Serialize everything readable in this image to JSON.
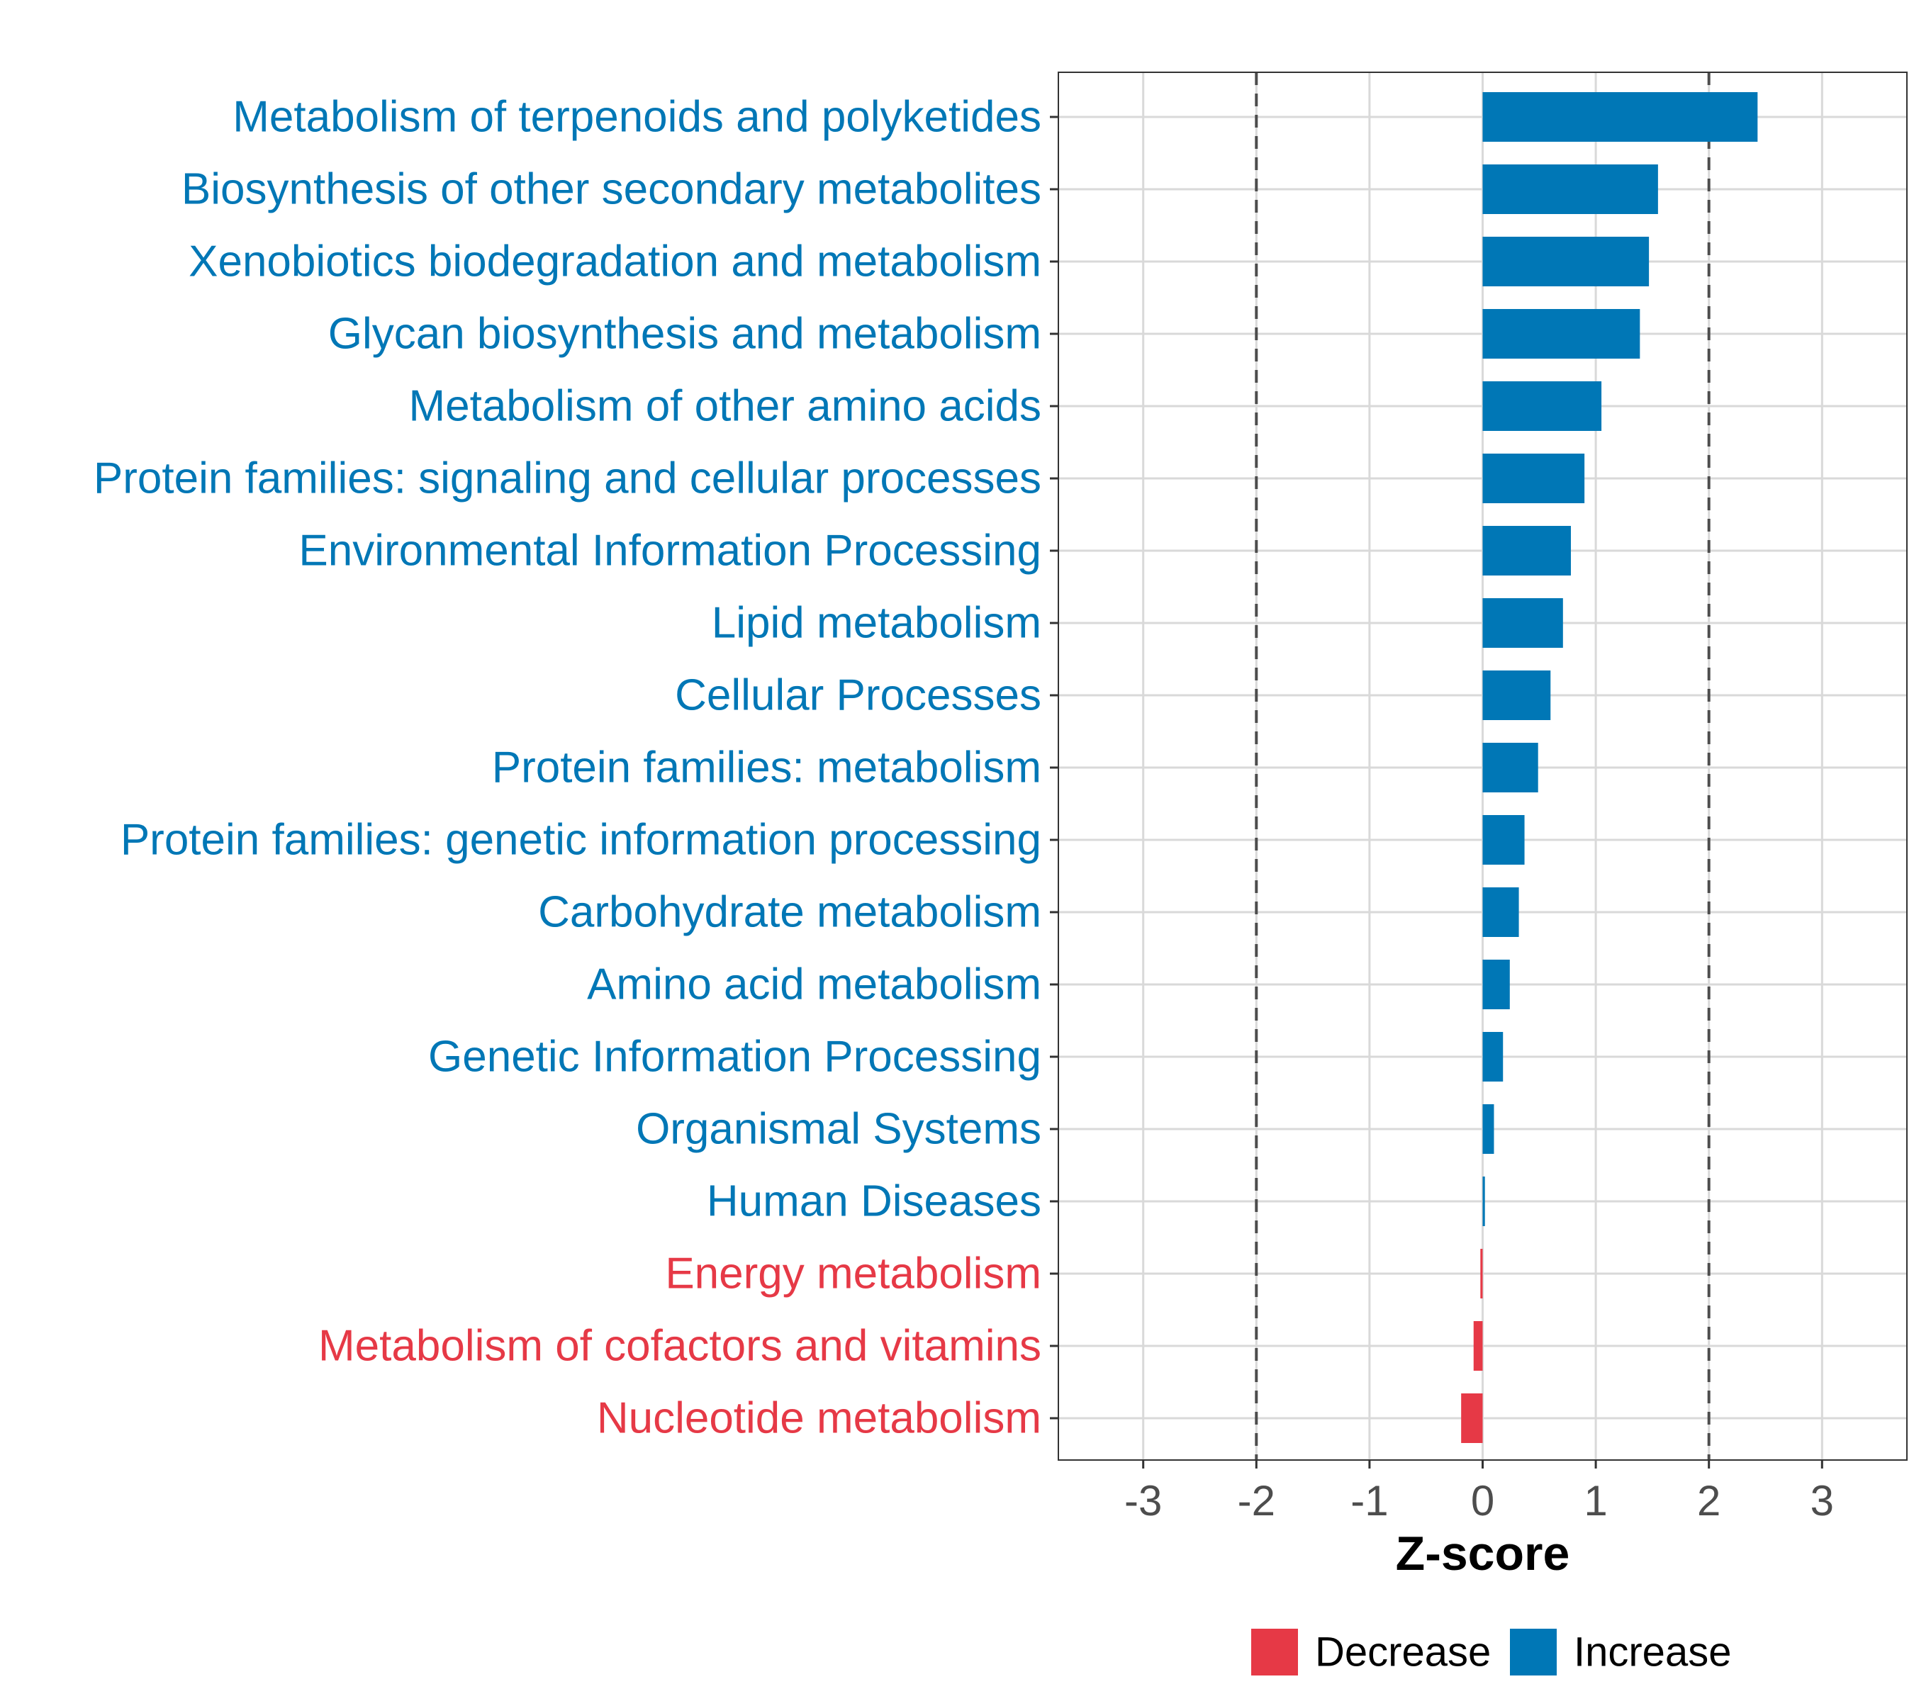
{
  "chart_data": {
    "type": "bar",
    "orientation": "horizontal",
    "title": "",
    "xlabel": "Z-score",
    "ylabel": "",
    "xlim": [
      -3.75,
      3.75
    ],
    "xticks": [
      -3,
      -2,
      -1,
      0,
      1,
      2,
      3
    ],
    "xtick_labels": [
      "-3",
      "-2",
      "-1",
      "0",
      "1",
      "2",
      "3"
    ],
    "reference_lines": [
      -2,
      2
    ],
    "grid": true,
    "colors": {
      "Decrease": "#e63946",
      "Increase": "#0077b6"
    },
    "categories": [
      "Metabolism of terpenoids and polyketides",
      "Biosynthesis of other secondary metabolites",
      "Xenobiotics biodegradation and metabolism",
      "Glycan biosynthesis and metabolism",
      "Metabolism of other amino acids",
      "Protein families: signaling and cellular processes",
      "Environmental Information Processing",
      "Lipid metabolism",
      "Cellular Processes",
      "Protein families: metabolism",
      "Protein families: genetic information processing",
      "Carbohydrate metabolism",
      "Amino acid metabolism",
      "Genetic Information Processing",
      "Organismal Systems",
      "Human Diseases",
      "Energy metabolism",
      "Metabolism of cofactors and vitamins",
      "Nucleotide metabolism"
    ],
    "values": [
      2.43,
      1.55,
      1.47,
      1.39,
      1.05,
      0.9,
      0.78,
      0.71,
      0.6,
      0.49,
      0.37,
      0.32,
      0.24,
      0.18,
      0.1,
      0.02,
      -0.02,
      -0.08,
      -0.19
    ],
    "groups": [
      "Increase",
      "Increase",
      "Increase",
      "Increase",
      "Increase",
      "Increase",
      "Increase",
      "Increase",
      "Increase",
      "Increase",
      "Increase",
      "Increase",
      "Increase",
      "Increase",
      "Increase",
      "Increase",
      "Decrease",
      "Decrease",
      "Decrease"
    ],
    "legend": {
      "position": "bottom",
      "entries": [
        {
          "label": "Decrease",
          "color": "#e63946"
        },
        {
          "label": "Increase",
          "color": "#0077b6"
        }
      ]
    }
  }
}
